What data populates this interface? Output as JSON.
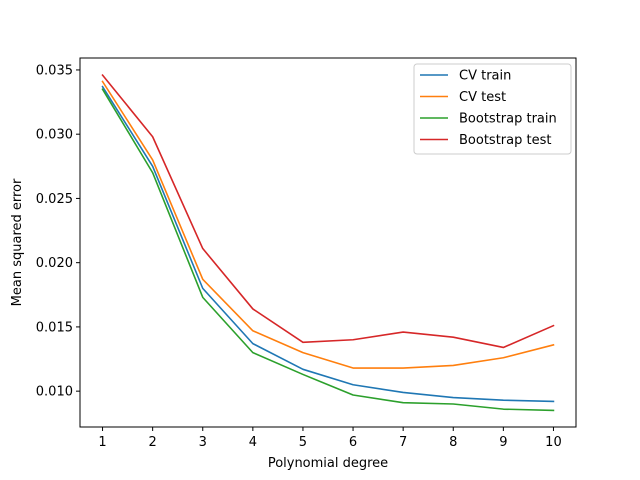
{
  "chart_data": {
    "type": "line",
    "title": "",
    "xlabel": "Polynomial degree",
    "ylabel": "Mean squared error",
    "x": [
      1,
      2,
      3,
      4,
      5,
      6,
      7,
      8,
      9,
      10
    ],
    "xticks": [
      "1",
      "2",
      "3",
      "4",
      "5",
      "6",
      "7",
      "8",
      "9",
      "10"
    ],
    "xlim": [
      0.55,
      10.45
    ],
    "yticks": [
      "0.010",
      "0.015",
      "0.020",
      "0.025",
      "0.030",
      "0.035"
    ],
    "ytick_values": [
      0.01,
      0.015,
      0.02,
      0.025,
      0.03,
      0.035
    ],
    "ylim": [
      0.00721,
      0.03593
    ],
    "grid": false,
    "legend_position": "top-right",
    "series": [
      {
        "name": "CV train",
        "color": "#1f77b4",
        "values": [
          0.0337,
          0.0275,
          0.018,
          0.0137,
          0.0117,
          0.0105,
          0.0099,
          0.0095,
          0.0093,
          0.0092
        ]
      },
      {
        "name": "CV test",
        "color": "#ff7f0e",
        "values": [
          0.0341,
          0.028,
          0.0187,
          0.0147,
          0.013,
          0.0118,
          0.0118,
          0.012,
          0.0126,
          0.0136
        ]
      },
      {
        "name": "Bootstrap train",
        "color": "#2ca02c",
        "values": [
          0.0335,
          0.027,
          0.0173,
          0.013,
          0.0113,
          0.0097,
          0.0091,
          0.009,
          0.0086,
          0.0085
        ]
      },
      {
        "name": "Bootstrap test",
        "color": "#d62728",
        "values": [
          0.0346,
          0.0298,
          0.0211,
          0.0164,
          0.0138,
          0.014,
          0.0146,
          0.0142,
          0.0134,
          0.0151
        ]
      }
    ]
  }
}
